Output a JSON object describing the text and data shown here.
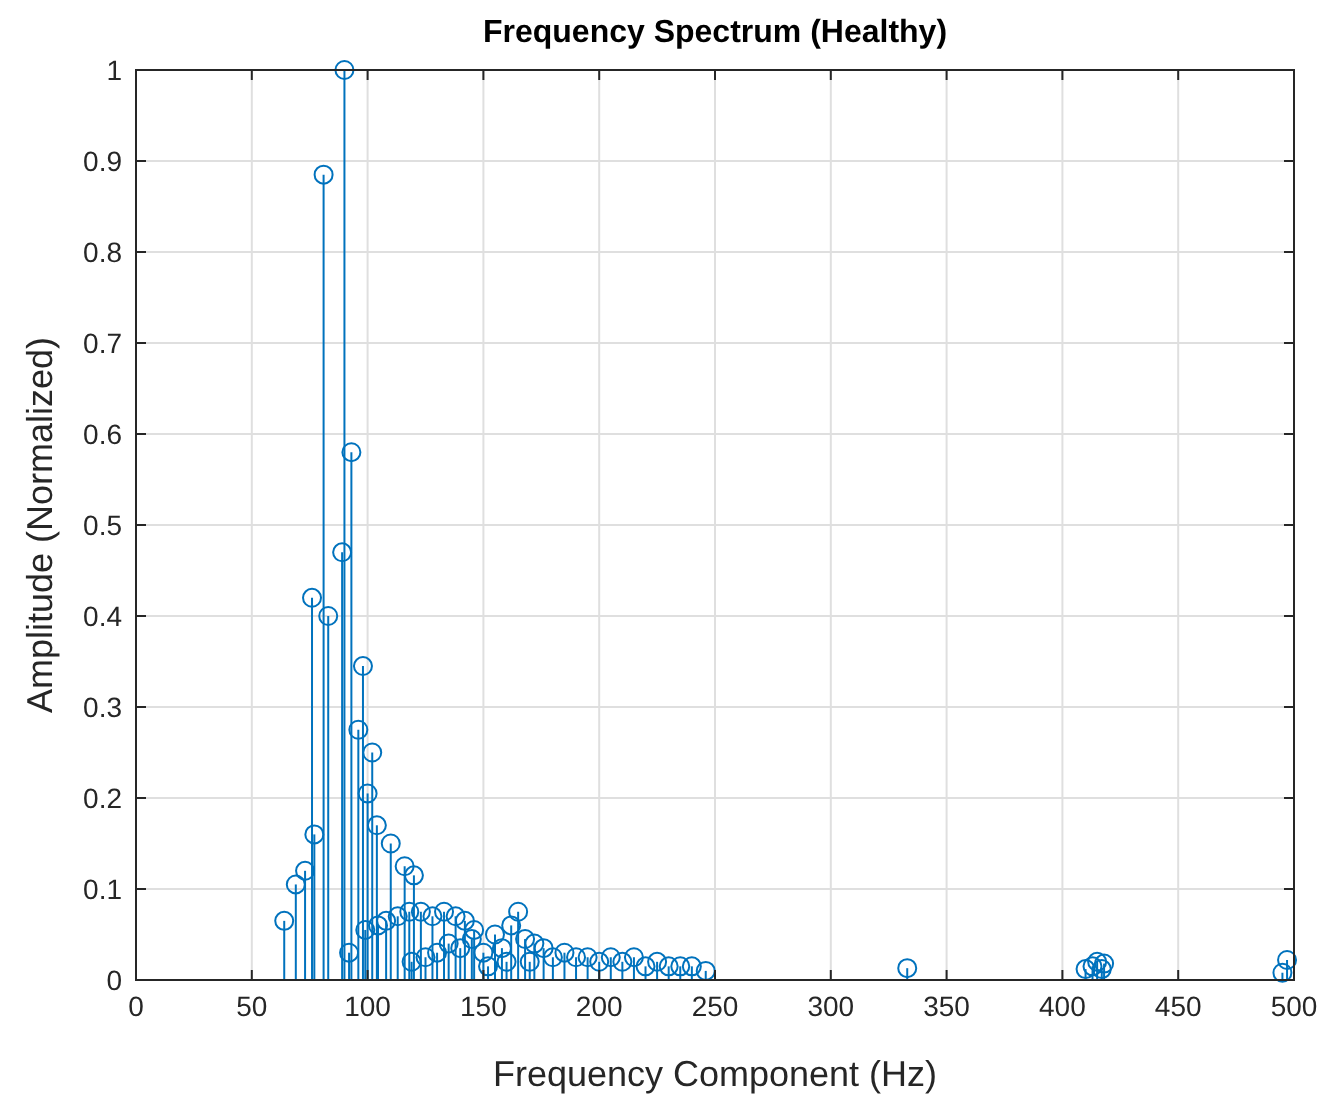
{
  "chart_data": {
    "type": "lollipop",
    "title": "Frequency Spectrum (Healthy)",
    "xlabel": "Frequency Component (Hz)",
    "ylabel": "Amplitude (Normalized)",
    "xlim": [
      0,
      500
    ],
    "xticks": [
      0,
      50,
      100,
      150,
      200,
      250,
      300,
      350,
      400,
      450,
      500
    ],
    "ylim": [
      0,
      1
    ],
    "yticks": [
      0,
      0.1,
      0.2,
      0.3,
      0.4,
      0.5,
      0.6,
      0.7,
      0.8,
      0.9,
      1
    ],
    "grid": true,
    "marker": "circle",
    "series": [
      {
        "color": "#0072bd",
        "x": [
          64,
          69,
          73,
          77,
          76,
          81,
          83,
          90,
          89,
          93,
          98,
          96,
          102,
          100,
          104,
          110,
          116,
          120,
          92,
          99,
          104.5,
          108,
          113,
          118,
          123,
          128,
          133,
          138,
          142,
          146,
          119,
          125,
          130,
          135,
          140,
          145,
          150,
          155,
          158,
          162,
          165,
          168,
          172,
          176,
          180,
          185,
          190,
          195,
          200,
          205,
          210,
          215,
          220,
          225,
          230,
          235,
          240,
          246,
          152,
          160,
          170,
          333,
          410,
          413,
          415,
          417,
          418,
          495,
          497
        ],
        "values": [
          0.065,
          0.105,
          0.12,
          0.16,
          0.42,
          0.885,
          0.4,
          1,
          0.47,
          0.58,
          0.345,
          0.275,
          0.25,
          0.205,
          0.17,
          0.15,
          0.125,
          0.115,
          0.03,
          0.055,
          0.06,
          0.065,
          0.07,
          0.075,
          0.075,
          0.07,
          0.075,
          0.07,
          0.065,
          0.055,
          0.02,
          0.025,
          0.03,
          0.04,
          0.035,
          0.045,
          0.03,
          0.05,
          0.035,
          0.06,
          0.075,
          0.045,
          0.04,
          0.035,
          0.025,
          0.03,
          0.025,
          0.025,
          0.02,
          0.025,
          0.02,
          0.025,
          0.015,
          0.02,
          0.015,
          0.015,
          0.015,
          0.01,
          0.015,
          0.02,
          0.02,
          0.013,
          0.012,
          0.015,
          0.02,
          0.012,
          0.018,
          0.008,
          0.022
        ]
      }
    ]
  }
}
